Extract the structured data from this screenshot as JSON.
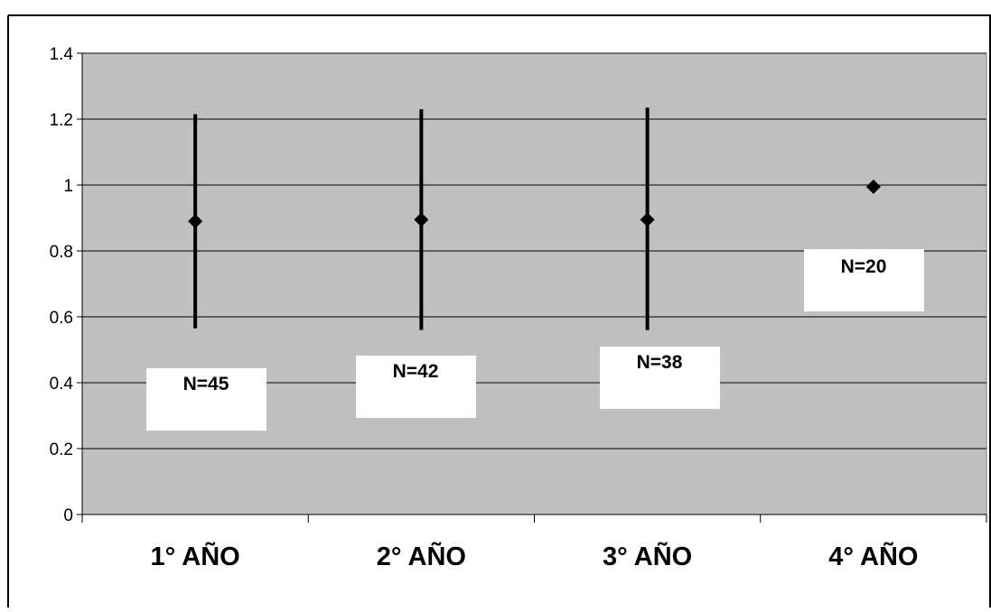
{
  "chart_data": {
    "type": "scatter",
    "categories": [
      "1° AÑO",
      "2° AÑO",
      "3° AÑO",
      "4° AÑO"
    ],
    "series": [
      {
        "values": [
          0.89,
          0.895,
          0.895,
          0.995
        ],
        "low": [
          0.565,
          0.56,
          0.56,
          null
        ],
        "high": [
          1.215,
          1.23,
          1.235,
          null
        ]
      }
    ],
    "annotations": [
      "N=45",
      "N=42",
      "N=38",
      "N=20"
    ],
    "yticks": [
      "0",
      "0.2",
      "0.4",
      "0.6",
      "0.8",
      "1",
      "1.2",
      "1.4"
    ],
    "ylim": [
      0,
      1.4
    ],
    "grid": true,
    "title": "",
    "xlabel": "",
    "ylabel": "",
    "colors": {
      "plot_background": "#c0c0c0",
      "marker": "#000000",
      "annotation_box": "#ffffff"
    }
  }
}
